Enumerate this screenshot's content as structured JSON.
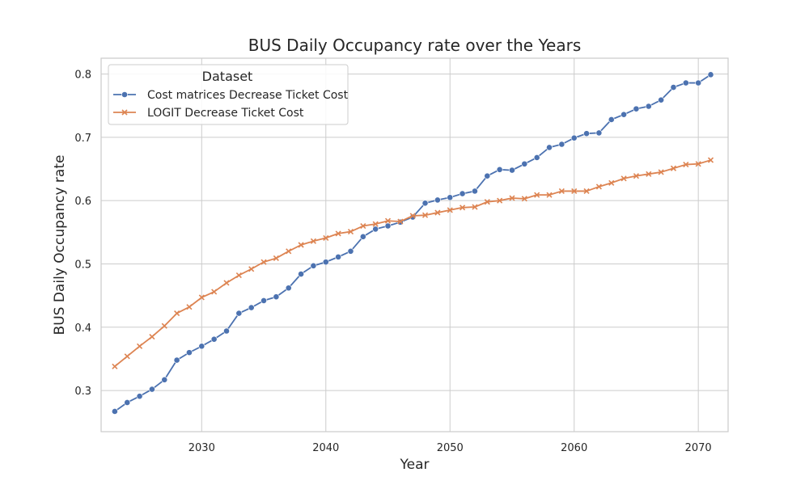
{
  "chart_data": {
    "type": "line",
    "title": "BUS Daily Occupancy rate over the Years",
    "xlabel": "Year",
    "ylabel": "BUS Daily Occupancy rate",
    "xlim": [
      2021.9,
      2072.4
    ],
    "ylim": [
      0.235,
      0.825
    ],
    "xticks": [
      2030,
      2040,
      2050,
      2060,
      2070
    ],
    "yticks": [
      0.3,
      0.4,
      0.5,
      0.6,
      0.7,
      0.8
    ],
    "grid": true,
    "legend": {
      "title": "Dataset",
      "placement": "top-left"
    },
    "x": [
      2023,
      2024,
      2025,
      2026,
      2027,
      2028,
      2029,
      2030,
      2031,
      2032,
      2033,
      2034,
      2035,
      2036,
      2037,
      2038,
      2039,
      2040,
      2041,
      2042,
      2043,
      2044,
      2045,
      2046,
      2047,
      2048,
      2049,
      2050,
      2051,
      2052,
      2053,
      2054,
      2055,
      2056,
      2057,
      2058,
      2059,
      2060,
      2061,
      2062,
      2063,
      2064,
      2065,
      2066,
      2067,
      2068,
      2069,
      2070,
      2071
    ],
    "series": [
      {
        "name": "Cost matrices Decrease Ticket Cost",
        "color": "#4c72b0",
        "marker": "circle",
        "values": [
          0.267,
          0.281,
          0.291,
          0.302,
          0.317,
          0.348,
          0.36,
          0.37,
          0.381,
          0.394,
          0.422,
          0.431,
          0.442,
          0.448,
          0.462,
          0.484,
          0.497,
          0.503,
          0.511,
          0.52,
          0.543,
          0.555,
          0.56,
          0.566,
          0.574,
          0.596,
          0.601,
          0.605,
          0.611,
          0.615,
          0.639,
          0.649,
          0.648,
          0.658,
          0.668,
          0.684,
          0.689,
          0.699,
          0.706,
          0.707,
          0.728,
          0.736,
          0.745,
          0.749,
          0.759,
          0.779,
          0.786,
          0.786,
          0.799
        ]
      },
      {
        "name": "LOGIT Decrease Ticket Cost",
        "color": "#dd8452",
        "marker": "x",
        "values": [
          0.338,
          0.354,
          0.37,
          0.385,
          0.402,
          0.422,
          0.432,
          0.447,
          0.456,
          0.47,
          0.482,
          0.492,
          0.503,
          0.509,
          0.52,
          0.53,
          0.536,
          0.541,
          0.548,
          0.551,
          0.56,
          0.563,
          0.568,
          0.567,
          0.576,
          0.577,
          0.581,
          0.585,
          0.589,
          0.59,
          0.598,
          0.6,
          0.604,
          0.603,
          0.609,
          0.609,
          0.615,
          0.615,
          0.615,
          0.622,
          0.628,
          0.635,
          0.639,
          0.642,
          0.645,
          0.651,
          0.657,
          0.658,
          0.664
        ]
      }
    ]
  }
}
